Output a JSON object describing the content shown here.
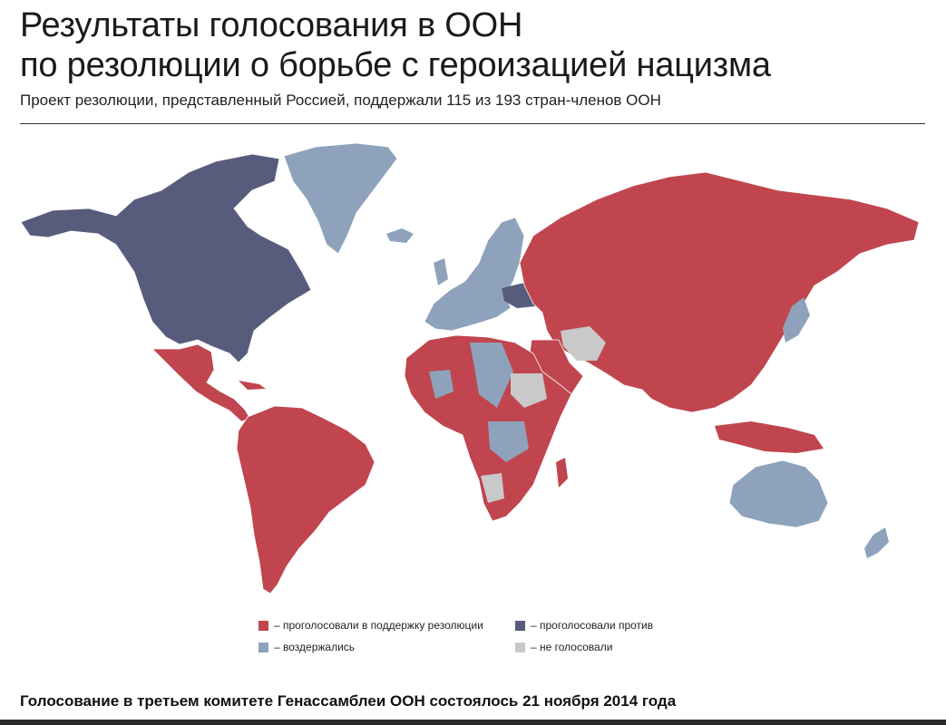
{
  "title_line1": "Результаты голосования в ООН",
  "title_line2": "по резолюции о борьбе с героизацией нацизма",
  "subtitle": "Проект резолюции, представленный Россией, поддержали 115 из 193 стран-членов ООН",
  "legend": {
    "support": "– проголосовали в поддержку резолюции",
    "against": "– проголосовали против",
    "abstained": "– воздержались",
    "no_vote": "– не голосовали"
  },
  "colors": {
    "support": "#c0454e",
    "against": "#585c7c",
    "abstained": "#8ea3bb",
    "no_vote": "#c9c9c9"
  },
  "footer": "Голосование в третьем комитете Генассамблеи ООН состоялось 21 ноября 2014 года"
}
